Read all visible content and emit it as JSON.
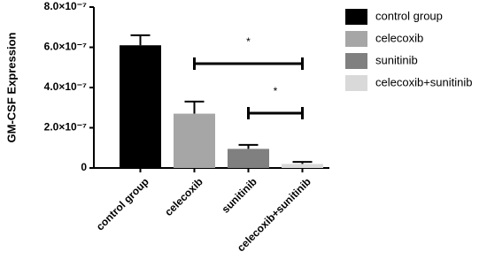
{
  "chart_data": {
    "type": "bar",
    "y_label": "GM-CSF Expression",
    "categories": [
      "control group",
      "celecoxib",
      "sunitinib",
      "celecoxib+sunitinib"
    ],
    "values": [
      6.1e-07,
      2.7e-07,
      9.5e-08,
      2e-08
    ],
    "errors": [
      5e-08,
      6e-08,
      2e-08,
      1e-08
    ],
    "colors": [
      "#000000",
      "#a6a6a6",
      "#808080",
      "#d9d9d9"
    ],
    "ylim": [
      0,
      8e-07
    ],
    "yticks": [
      0,
      {
        "value": 2e-07,
        "label": "2.0×10⁻⁷"
      },
      {
        "value": 4e-07,
        "label": "4.0×10⁻⁷"
      },
      {
        "value": 6e-07,
        "label": "6.0×10⁻⁷"
      },
      {
        "value": 8e-07,
        "label": "8.0×10⁻⁷"
      }
    ],
    "legend": "right",
    "annotations": [
      {
        "text": "*",
        "between": [
          "celecoxib",
          "celecoxib+sunitinib"
        ]
      },
      {
        "text": "*",
        "between": [
          "sunitinib",
          "celecoxib+sunitinib"
        ]
      }
    ]
  }
}
